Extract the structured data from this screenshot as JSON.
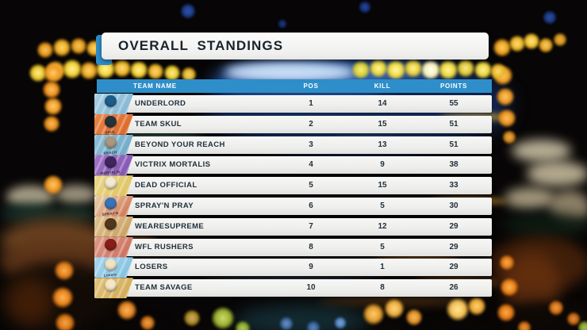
{
  "title": "OVERALL STANDINGS",
  "table": {
    "columns": [
      "TEAM NAME",
      "POS",
      "KILL",
      "POINTS"
    ],
    "rows": [
      {
        "team": "UNDERLORD",
        "pos": "1",
        "kill": "14",
        "points": "55",
        "badge": {
          "base": "#a9cfe3",
          "base2": "#7fb3d2",
          "logo": "#1d5d8c",
          "label": ""
        }
      },
      {
        "team": "TEAM SKUL",
        "pos": "2",
        "kill": "15",
        "points": "51",
        "badge": {
          "base": "#ea8446",
          "base2": "#d96526",
          "logo": "#27333a",
          "label": "SKUL"
        }
      },
      {
        "team": "BEYOND YOUR REACH",
        "pos": "3",
        "kill": "13",
        "points": "51",
        "badge": {
          "base": "#8fc0d8",
          "base2": "#6da7c4",
          "logo": "#a99781",
          "label": "REACH"
        }
      },
      {
        "team": "VICTRIX MORTALIS",
        "pos": "4",
        "kill": "9",
        "points": "38",
        "badge": {
          "base": "#a376c8",
          "base2": "#7e4fae",
          "logo": "#41265e",
          "label": "MORTALIS"
        }
      },
      {
        "team": "DEAD OFFICIAL",
        "pos": "5",
        "kill": "15",
        "points": "33",
        "badge": {
          "base": "#ecd98e",
          "base2": "#dcc058",
          "logo": "#f4ead2",
          "label": ""
        }
      },
      {
        "team": "SPRAY'N PRAY",
        "pos": "6",
        "kill": "5",
        "points": "30",
        "badge": {
          "base": "#e6d2ac",
          "base2": "#cf6a4a",
          "logo": "#3a72b8",
          "label": "SPRAY'N"
        }
      },
      {
        "team": "WEARESUPREME",
        "pos": "7",
        "kill": "12",
        "points": "29",
        "badge": {
          "base": "#e0c493",
          "base2": "#c79a58",
          "logo": "#54361c",
          "label": ""
        }
      },
      {
        "team": "WFL RUSHERS",
        "pos": "8",
        "kill": "5",
        "points": "29",
        "badge": {
          "base": "#e09a8a",
          "base2": "#c96a55",
          "logo": "#871e18",
          "label": ""
        }
      },
      {
        "team": "LOSERS",
        "pos": "9",
        "kill": "1",
        "points": "29",
        "badge": {
          "base": "#a7d6ee",
          "base2": "#7fbede",
          "logo": "#f1e3c2",
          "label": "Losers"
        }
      },
      {
        "team": "TEAM SAVAGE",
        "pos": "10",
        "kill": "8",
        "points": "26",
        "badge": {
          "base": "#e2c47e",
          "base2": "#cfa84e",
          "logo": "#f4e6c6",
          "label": ""
        }
      }
    ]
  },
  "colors": {
    "accent_blue": "#2e8ec9",
    "row_text": "#20303b",
    "title_text": "#17232c"
  }
}
